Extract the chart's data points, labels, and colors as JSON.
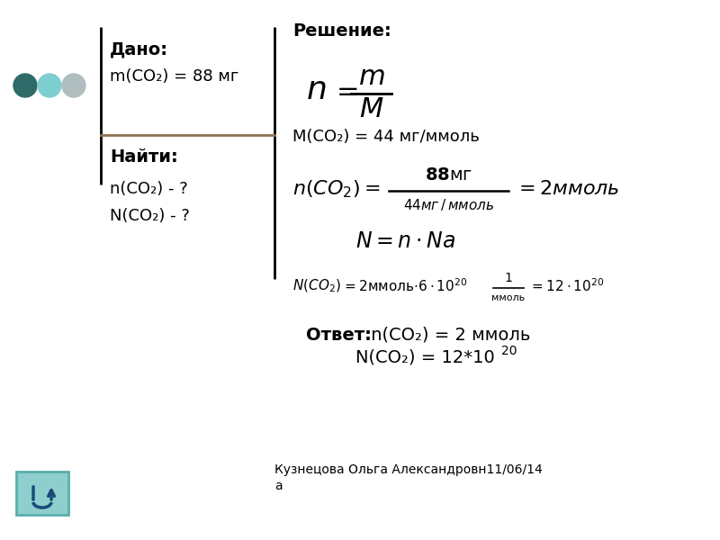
{
  "bg_color": "#ffffff",
  "divider_color": "#8B7355",
  "circle_colors": [
    "#2e6b68",
    "#7ecfcf",
    "#b0bec0"
  ],
  "dado_label": "Дано:",
  "dado_text": "m(CO₂) = 88 мг",
  "najti_label": "Найти:",
  "najti_lines": [
    "n(CO₂) - ?",
    "N(CO₂) - ?"
  ],
  "reshenie_label": "Решение:",
  "molar_mass_text": "М(CO₂) = 44 мг/ммоль",
  "answer_bold": "Ответ:",
  "answer1": " n(CO₂) = 2 ммоль",
  "answer2": "N(CO₂) = 12*10",
  "footer1": "Кузнецова Ольга Александровн11/06/14",
  "footer2": "а",
  "icon_color": "#8ecfce",
  "icon_border": "#5aafae"
}
